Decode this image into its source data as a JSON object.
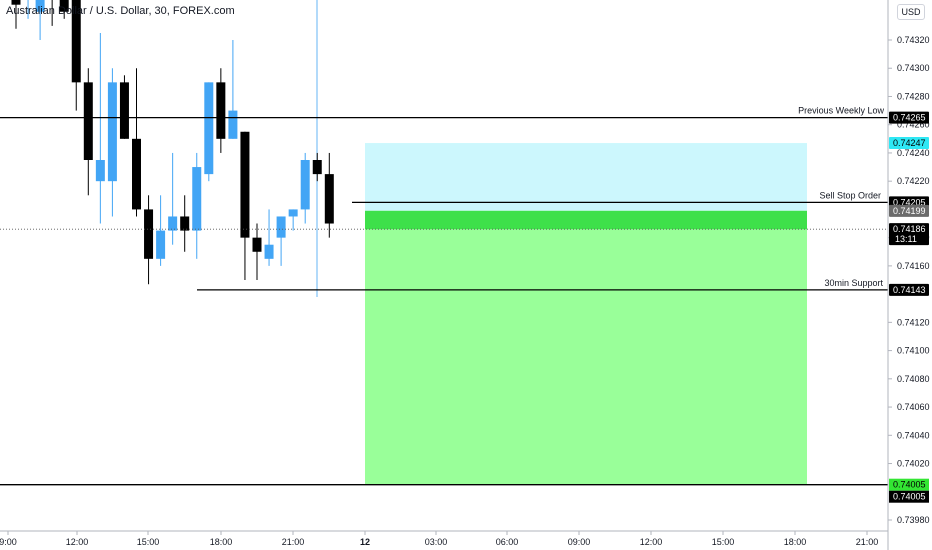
{
  "header": {
    "title": "Australian Dollar / U.S. Dollar, 30, FOREX.com",
    "currency": "USD"
  },
  "colors": {
    "bull": "#42a5f5",
    "bear": "#000000",
    "stop_zone": "#ccf7fd",
    "target_zone": "#99ff99",
    "entry_band": "#3ee04a",
    "stop_tag": "#2ee8f5",
    "target_tag": "#33e633",
    "vline": "#64b5f6"
  },
  "chart_data": {
    "type": "candlestick",
    "y_axis": {
      "min": 0.7397,
      "max": 0.7436,
      "ticks": [
        "0.74320",
        "0.74300",
        "0.74280",
        "0.74260",
        "0.74240",
        "0.74220",
        "0.74180",
        "0.74160",
        "0.74120",
        "0.74100",
        "0.74080",
        "0.74060",
        "0.74040",
        "0.74020",
        "0.73980"
      ]
    },
    "x_axis": {
      "ticks": [
        "9:00",
        "12:00",
        "15:00",
        "18:00",
        "21:00",
        "12",
        "03:00",
        "06:00",
        "09:00",
        "12:00",
        "15:00",
        "18:00",
        "21:00"
      ],
      "bold_tick": "12"
    },
    "candles": [
      {
        "o": 0.74355,
        "h": 0.74365,
        "l": 0.74328,
        "c": 0.74345
      },
      {
        "o": 0.7435,
        "h": 0.7437,
        "l": 0.74335,
        "c": 0.7436
      },
      {
        "o": 0.7434,
        "h": 0.7436,
        "l": 0.7432,
        "c": 0.74355
      },
      {
        "o": 0.7437,
        "h": 0.7438,
        "l": 0.7433,
        "c": 0.7435
      },
      {
        "o": 0.7437,
        "h": 0.7438,
        "l": 0.74335,
        "c": 0.7434
      },
      {
        "o": 0.7435,
        "h": 0.7436,
        "l": 0.7427,
        "c": 0.7429
      },
      {
        "o": 0.7429,
        "h": 0.743,
        "l": 0.7421,
        "c": 0.74235
      },
      {
        "o": 0.7422,
        "h": 0.74325,
        "l": 0.7419,
        "c": 0.74235
      },
      {
        "o": 0.7422,
        "h": 0.743,
        "l": 0.74195,
        "c": 0.7429
      },
      {
        "o": 0.7429,
        "h": 0.74295,
        "l": 0.7425,
        "c": 0.7425
      },
      {
        "o": 0.7425,
        "h": 0.743,
        "l": 0.74195,
        "c": 0.742
      },
      {
        "o": 0.742,
        "h": 0.7421,
        "l": 0.74147,
        "c": 0.74165
      },
      {
        "o": 0.74165,
        "h": 0.7421,
        "l": 0.7416,
        "c": 0.74185
      },
      {
        "o": 0.74185,
        "h": 0.7424,
        "l": 0.74175,
        "c": 0.74195
      },
      {
        "o": 0.74195,
        "h": 0.7421,
        "l": 0.7417,
        "c": 0.74185
      },
      {
        "o": 0.74185,
        "h": 0.7424,
        "l": 0.74165,
        "c": 0.7423
      },
      {
        "o": 0.74225,
        "h": 0.7429,
        "l": 0.7422,
        "c": 0.7429
      },
      {
        "o": 0.7429,
        "h": 0.743,
        "l": 0.7424,
        "c": 0.7425
      },
      {
        "o": 0.7425,
        "h": 0.7432,
        "l": 0.7425,
        "c": 0.7427
      },
      {
        "o": 0.74255,
        "h": 0.74255,
        "l": 0.7415,
        "c": 0.7418
      },
      {
        "o": 0.7418,
        "h": 0.7419,
        "l": 0.7415,
        "c": 0.7417
      },
      {
        "o": 0.74165,
        "h": 0.742,
        "l": 0.7416,
        "c": 0.74175
      },
      {
        "o": 0.7418,
        "h": 0.74195,
        "l": 0.7416,
        "c": 0.74195
      },
      {
        "o": 0.74195,
        "h": 0.742,
        "l": 0.74185,
        "c": 0.742
      },
      {
        "o": 0.742,
        "h": 0.7424,
        "l": 0.7419,
        "c": 0.74235
      },
      {
        "o": 0.74235,
        "h": 0.7424,
        "l": 0.7422,
        "c": 0.74225
      },
      {
        "o": 0.74225,
        "h": 0.7424,
        "l": 0.7418,
        "c": 0.7419
      }
    ],
    "levels": [
      {
        "label": "Previous Weekly Low",
        "value": "0.74265"
      },
      {
        "label": "Sell Stop Order",
        "value": "0.74205"
      },
      {
        "label": "30min Support",
        "value": "0.74143"
      },
      {
        "label": "",
        "value": "0.74005"
      }
    ],
    "position": {
      "entry": "0.74199",
      "stop": "0.74247",
      "target": "0.74005"
    },
    "current_price": {
      "value": "0.74186",
      "countdown": "13:11"
    }
  }
}
